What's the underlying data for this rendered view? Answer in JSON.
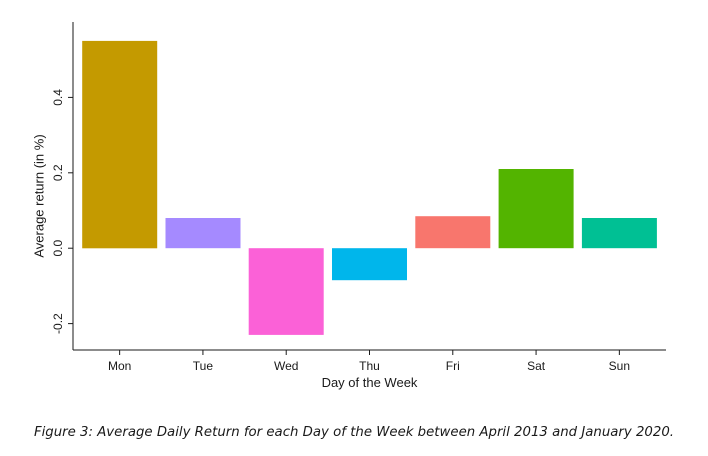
{
  "chart_data": {
    "type": "bar",
    "categories": [
      "Mon",
      "Tue",
      "Wed",
      "Thu",
      "Fri",
      "Sat",
      "Sun"
    ],
    "values": [
      0.55,
      0.08,
      -0.23,
      -0.085,
      0.085,
      0.21,
      0.08
    ],
    "colors": [
      "#C49A00",
      "#A58AFF",
      "#FB61D7",
      "#00B6EB",
      "#F8766D",
      "#53B400",
      "#00C094"
    ],
    "xlabel": "Day of the Week",
    "ylabel": "Average return (in %)",
    "ylim": [
      -0.27,
      0.6
    ],
    "yticks": [
      -0.2,
      0.0,
      0.2,
      0.4
    ],
    "ytick_labels": [
      "-0.2",
      "0.0",
      "0.2",
      "0.4"
    ],
    "grid": false
  },
  "caption": "Figure 3: Average Daily Return for each Day of the Week between April 2013 and January 2020."
}
